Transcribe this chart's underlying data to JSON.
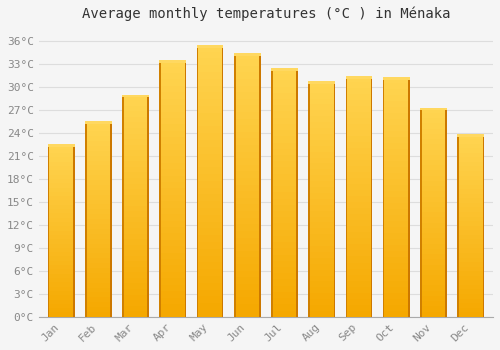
{
  "title": "Average monthly temperatures (°C ) in Ménaka",
  "months": [
    "Jan",
    "Feb",
    "Mar",
    "Apr",
    "May",
    "Jun",
    "Jul",
    "Aug",
    "Sep",
    "Oct",
    "Nov",
    "Dec"
  ],
  "temperatures": [
    22.5,
    25.5,
    29.0,
    33.5,
    35.5,
    34.5,
    32.5,
    30.8,
    31.5,
    31.3,
    27.3,
    23.8
  ],
  "bar_color_light": "#FFD050",
  "bar_color_dark": "#F5A800",
  "bar_edge_color": "#C88000",
  "yticks": [
    0,
    3,
    6,
    9,
    12,
    15,
    18,
    21,
    24,
    27,
    30,
    33,
    36
  ],
  "ylim": [
    0,
    37.5
  ],
  "background_color": "#F5F5F5",
  "plot_bg_color": "#F5F5F5",
  "grid_color": "#DDDDDD",
  "title_fontsize": 10,
  "tick_fontsize": 8,
  "tick_color": "#888888"
}
